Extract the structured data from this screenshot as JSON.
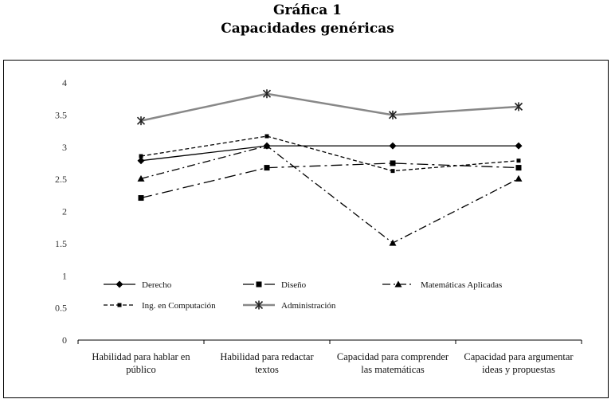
{
  "chart_data": {
    "type": "line",
    "title": "Gráfica 1",
    "subtitle": "Capacidades genéricas",
    "categories": [
      [
        "Habilidad para hablar en",
        "público"
      ],
      [
        "Habilidad para redactar",
        "textos"
      ],
      [
        "Capacidad para comprender",
        "las matemáticas"
      ],
      [
        "Capacidad para argumentar",
        "ideas y propuestas"
      ]
    ],
    "ylim": [
      0,
      4
    ],
    "yticks": [
      "0",
      "0.5",
      "1",
      "1.5",
      "2",
      "2.5",
      "3",
      "3.5",
      "4"
    ],
    "grid": false,
    "legend_position": "bottom-inside",
    "series": [
      {
        "name": "Derecho",
        "values": [
          2.79,
          3.02,
          3.02,
          3.02
        ],
        "marker": "diamond",
        "dash": "solid",
        "color": "#000000"
      },
      {
        "name": "Diseño",
        "values": [
          2.21,
          2.68,
          2.75,
          2.68
        ],
        "marker": "square",
        "dash": "dashdot-long",
        "color": "#000000"
      },
      {
        "name": "Matemáticas Aplicadas",
        "values": [
          2.51,
          3.02,
          1.51,
          2.51
        ],
        "marker": "triangle",
        "dash": "dashdot",
        "color": "#000000"
      },
      {
        "name": "Ing. en Computación",
        "values": [
          2.86,
          3.17,
          2.63,
          2.79
        ],
        "marker": "smallsquare",
        "dash": "dashed",
        "color": "#000000"
      },
      {
        "name": "Administración",
        "values": [
          3.41,
          3.83,
          3.5,
          3.63
        ],
        "marker": "star",
        "dash": "solid",
        "color": "#888888"
      }
    ]
  }
}
